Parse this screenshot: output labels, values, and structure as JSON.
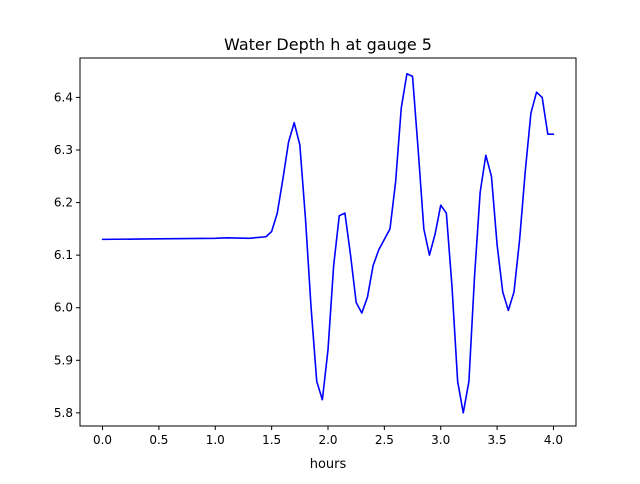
{
  "chart_data": {
    "type": "line",
    "title": "Water Depth h at gauge 5",
    "xlabel": "hours",
    "ylabel": "",
    "xlim": [
      -0.2,
      4.2
    ],
    "ylim": [
      5.775,
      6.475
    ],
    "xticks": [
      0.0,
      0.5,
      1.0,
      1.5,
      2.0,
      2.5,
      3.0,
      3.5,
      4.0
    ],
    "xtick_labels": [
      "0.0",
      "0.5",
      "1.0",
      "1.5",
      "2.0",
      "2.5",
      "3.0",
      "3.5",
      "4.0"
    ],
    "yticks": [
      5.8,
      5.9,
      6.0,
      6.1,
      6.2,
      6.3,
      6.4
    ],
    "ytick_labels": [
      "5.8",
      "5.9",
      "6.0",
      "6.1",
      "6.2",
      "6.3",
      "6.4"
    ],
    "grid": false,
    "legend": "none",
    "series": [
      {
        "color": "#0000ff",
        "x": [
          0.0,
          0.5,
          1.0,
          1.1,
          1.3,
          1.45,
          1.5,
          1.55,
          1.6,
          1.65,
          1.7,
          1.75,
          1.8,
          1.85,
          1.9,
          1.95,
          2.0,
          2.05,
          2.1,
          2.15,
          2.2,
          2.25,
          2.3,
          2.35,
          2.4,
          2.45,
          2.5,
          2.55,
          2.6,
          2.65,
          2.7,
          2.75,
          2.8,
          2.85,
          2.9,
          2.95,
          3.0,
          3.05,
          3.1,
          3.15,
          3.2,
          3.25,
          3.3,
          3.35,
          3.4,
          3.45,
          3.5,
          3.55,
          3.6,
          3.65,
          3.7,
          3.75,
          3.8,
          3.85,
          3.9,
          3.95,
          4.0
        ],
        "y": [
          6.13,
          6.131,
          6.132,
          6.133,
          6.132,
          6.135,
          6.145,
          6.18,
          6.245,
          6.315,
          6.352,
          6.31,
          6.17,
          6.0,
          5.86,
          5.825,
          5.92,
          6.08,
          6.175,
          6.18,
          6.1,
          6.01,
          5.99,
          6.02,
          6.08,
          6.11,
          6.13,
          6.15,
          6.24,
          6.38,
          6.445,
          6.44,
          6.3,
          6.15,
          6.1,
          6.14,
          6.195,
          6.18,
          6.04,
          5.86,
          5.8,
          5.86,
          6.06,
          6.22,
          6.29,
          6.25,
          6.12,
          6.03,
          5.995,
          6.03,
          6.13,
          6.26,
          6.37,
          6.41,
          6.4,
          6.33,
          6.33
        ]
      }
    ]
  }
}
